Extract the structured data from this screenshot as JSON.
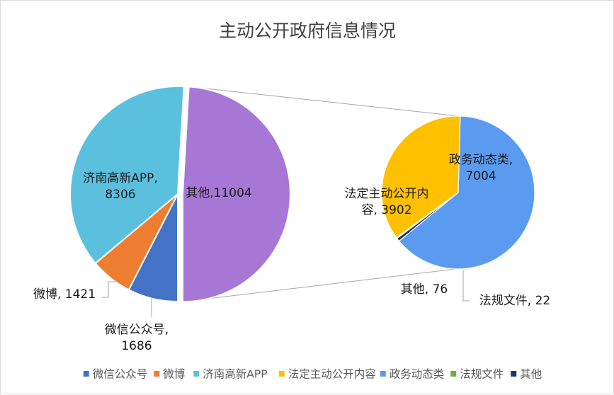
{
  "chart_data": {
    "type": "pie",
    "subtype": "pie-of-pie",
    "title": "主动公开政府信息情况",
    "main_pie": [
      {
        "name": "微信公众号",
        "value": 1686,
        "color": "#4472C4",
        "label_lines": [
          "微信公众号,",
          "1686"
        ]
      },
      {
        "name": "微博",
        "value": 1421,
        "color": "#ED7D31",
        "label_lines": [
          "微博, 1421"
        ]
      },
      {
        "name": "济南高新APP",
        "value": 8306,
        "color": "#5BC0DE",
        "label_lines": [
          "济南高新APP,",
          "8306"
        ]
      },
      {
        "name": "其他",
        "value": 11004,
        "color": "#A777D6",
        "label_lines": [
          "其他,11004"
        ]
      }
    ],
    "secondary_pie": [
      {
        "name": "法定主动公开内容",
        "value": 3902,
        "color": "#FFC000",
        "label_lines": [
          "法定主动公开内",
          "容, 3902"
        ]
      },
      {
        "name": "政务动态类",
        "value": 7004,
        "color": "#5B9BEF",
        "label_lines": [
          "政务动态类,",
          "7004"
        ]
      },
      {
        "name": "法规文件",
        "value": 22,
        "color": "#70AD47",
        "label_lines": [
          "法规文件, 22"
        ]
      },
      {
        "name": "其他",
        "value": 76,
        "color": "#203864",
        "label_lines": [
          "其他, 76"
        ]
      }
    ],
    "legend": {
      "position": "bottom",
      "items": [
        {
          "name": "微信公众号",
          "color": "#4472C4"
        },
        {
          "name": "微博",
          "color": "#ED7D31"
        },
        {
          "name": "济南高新APP",
          "color": "#5BC0DE"
        },
        {
          "name": "法定主动公开内容",
          "color": "#FFC000"
        },
        {
          "name": "政务动态类",
          "color": "#5B9BEF"
        },
        {
          "name": "法规文件",
          "color": "#70AD47"
        },
        {
          "name": "其他",
          "color": "#203864"
        }
      ]
    }
  }
}
